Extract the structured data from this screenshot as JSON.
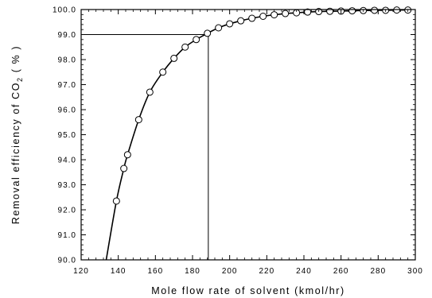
{
  "chart_data": {
    "type": "line",
    "title": "",
    "xlabel": "Mole flow rate of solvent (kmol/hr)",
    "ylabel_prefix": "Removal efficiency of CO",
    "ylabel_subscript": "2",
    "ylabel_suffix": " ( % )",
    "xlim": [
      120,
      300
    ],
    "ylim": [
      90.0,
      100.0
    ],
    "x_ticks": [
      120,
      140,
      160,
      180,
      200,
      220,
      240,
      260,
      280,
      300
    ],
    "x_tick_labels": [
      "120",
      "140",
      "160",
      "180",
      "200",
      "220",
      "240",
      "260",
      "280",
      "300"
    ],
    "y_ticks": [
      90.0,
      91.0,
      92.0,
      93.0,
      94.0,
      95.0,
      96.0,
      97.0,
      98.0,
      99.0,
      100.0
    ],
    "y_tick_labels": [
      "90.0",
      "91.0",
      "92.0",
      "93.0",
      "94.0",
      "95.0",
      "96.0",
      "97.0",
      "98.0",
      "99.0",
      "100.0"
    ],
    "grid": false,
    "series": [
      {
        "marker": "circle-open",
        "x": [
          139,
          143,
          145,
          151,
          157,
          164,
          170,
          176,
          182,
          188,
          194,
          200,
          206,
          212,
          218,
          224,
          230,
          236,
          242,
          248,
          254,
          260,
          266,
          272,
          278,
          284,
          290,
          296
        ],
        "y": [
          92.35,
          93.65,
          94.2,
          95.6,
          96.7,
          97.5,
          98.05,
          98.5,
          98.8,
          99.05,
          99.27,
          99.43,
          99.55,
          99.65,
          99.73,
          99.79,
          99.84,
          99.87,
          99.9,
          99.92,
          99.93,
          99.94,
          99.95,
          99.96,
          99.97,
          99.97,
          99.98,
          99.98
        ]
      }
    ],
    "curve_start": {
      "x": 133.5,
      "y": 90.0
    },
    "reference_point": {
      "x": 188.5,
      "y": 99.0
    }
  }
}
